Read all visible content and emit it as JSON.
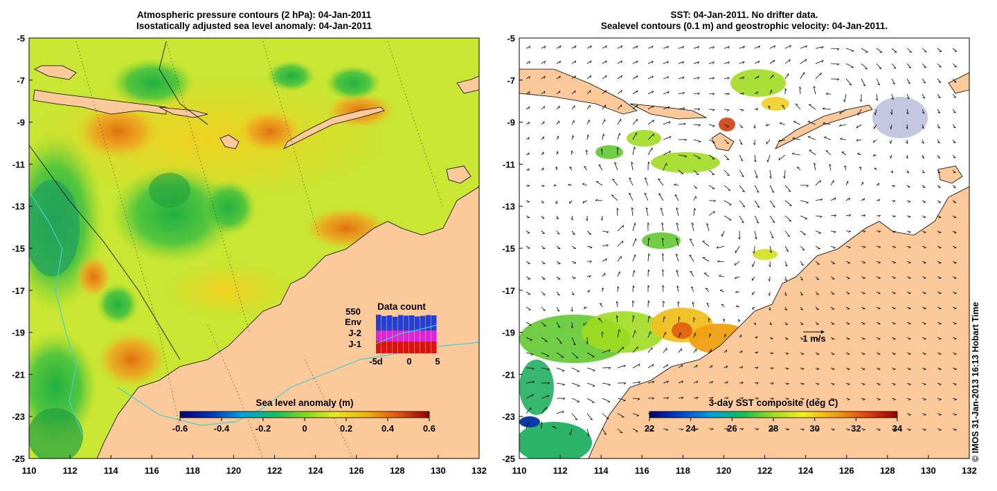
{
  "left_panel": {
    "title_line1": "Atmospheric pressure contours (2 hPa): 04-Jan-2011",
    "title_line2": "Isostatically adjusted sea level anomaly: 04-Jan-2011",
    "colorbar": {
      "label": "Sea level anomaly (m)",
      "ticks": [
        "-0.6",
        "-0.4",
        "-0.2",
        "0",
        "0.2",
        "0.4",
        "0.6"
      ]
    },
    "inset": {
      "title": "Data count",
      "count": "550",
      "legend": [
        "Env",
        "J-2",
        "J-1"
      ],
      "legend_colors": [
        "#1f3fe0",
        "#e020e0",
        "#e01010"
      ],
      "x_ticks": [
        "-5d",
        "0",
        "5"
      ]
    }
  },
  "right_panel": {
    "title_line1": "SST: 04-Jan-2011. No drifter data.",
    "title_line2": "Sealevel contours (0.1 m) and geostrophic velocity: 04-Jan-2011.",
    "colorbar": {
      "label": "3-day SST composite (deg C)",
      "ticks": [
        "22",
        "24",
        "26",
        "28",
        "30",
        "32",
        "34"
      ]
    },
    "scale_label": "1 m/s"
  },
  "axes": {
    "x_ticks": [
      "110",
      "112",
      "114",
      "116",
      "118",
      "120",
      "122",
      "124",
      "126",
      "128",
      "130",
      "132"
    ],
    "y_ticks": [
      "-5",
      "-7",
      "-9",
      "-11",
      "-13",
      "-15",
      "-17",
      "-19",
      "-21",
      "-23",
      "-25"
    ],
    "lon_range": [
      110,
      132
    ],
    "lat_range": [
      -25,
      -5
    ]
  },
  "colors": {
    "land": "#fbc99a",
    "ocean_base": "#c8e632",
    "coast_line": "#000000",
    "contour_cyan": "#40d0d8"
  },
  "credit": "© IMOS 31-Jan-2013 16:13 Hobart Time"
}
